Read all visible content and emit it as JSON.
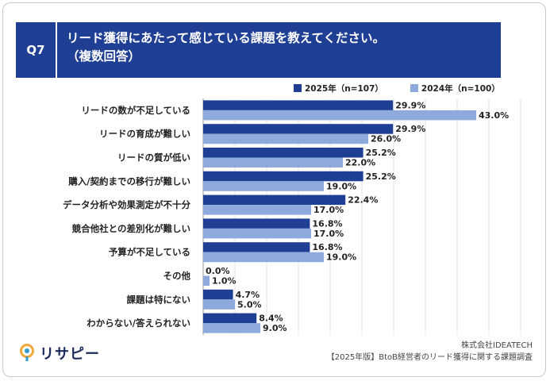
{
  "header": {
    "badge": "Q7",
    "title_line1": "リード獲得にあたって感じている課題を教えてください。",
    "title_line2": "（複数回答）"
  },
  "colors": {
    "header_bg": "#1f3f95",
    "series_2025": "#1f3f95",
    "series_2024": "#8ea9db"
  },
  "chart_data": {
    "type": "bar",
    "orientation": "horizontal",
    "categories": [
      "リードの数が不足している",
      "リードの育成が難しい",
      "リードの質が低い",
      "購入/契約までの移行が難しい",
      "データ分析や効果測定が不十分",
      "競合他社との差別化が難しい",
      "予算が不足している",
      "その他",
      "課題は特にない",
      "わからない/答えられない"
    ],
    "series": [
      {
        "name": "2025年（n=107）",
        "values": [
          29.9,
          29.9,
          25.2,
          25.2,
          22.4,
          16.8,
          16.8,
          0.0,
          4.7,
          8.4
        ]
      },
      {
        "name": "2024年（n=100）",
        "values": [
          43.0,
          26.0,
          22.0,
          19.0,
          17.0,
          17.0,
          19.0,
          1.0,
          5.0,
          9.0
        ]
      }
    ],
    "value_suffix": "%",
    "xlim": [
      0,
      50
    ],
    "grid": true,
    "legend_position": "top-right"
  },
  "footer": {
    "logo_text": "リサピー",
    "company": "株式会社IDEATECH",
    "survey": "【2025年版】BtoB経営者のリード獲得に関する課題調査"
  }
}
